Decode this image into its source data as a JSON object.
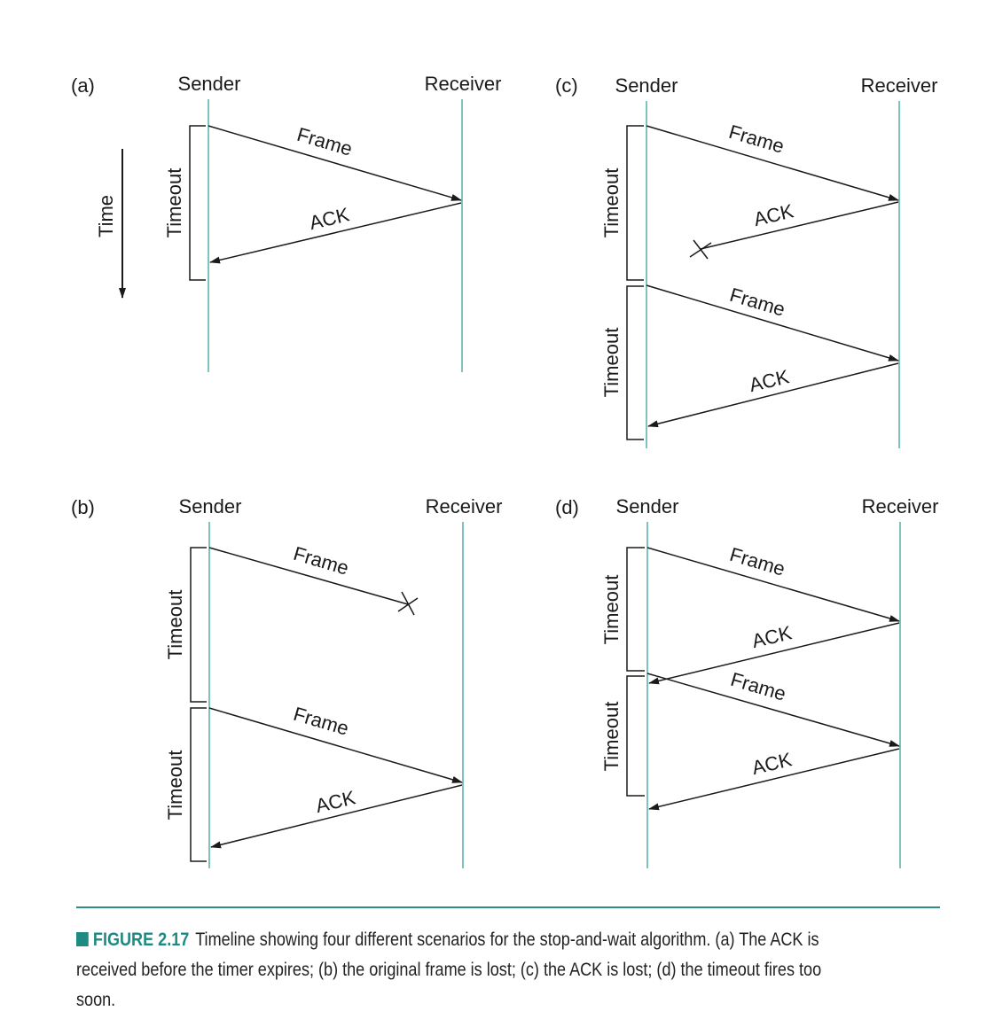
{
  "axis": {
    "time_label": "Time"
  },
  "panels": [
    {
      "id": "a",
      "tag": "(a)",
      "sender": "Sender",
      "receiver": "Receiver",
      "timeouts": [
        "Timeout"
      ],
      "messages": [
        {
          "label": "Frame"
        },
        {
          "label": "ACK"
        }
      ]
    },
    {
      "id": "b",
      "tag": "(b)",
      "sender": "Sender",
      "receiver": "Receiver",
      "timeouts": [
        "Timeout",
        "Timeout"
      ],
      "messages": [
        {
          "label": "Frame",
          "lost": true
        },
        {
          "label": "Frame"
        },
        {
          "label": "ACK"
        }
      ]
    },
    {
      "id": "c",
      "tag": "(c)",
      "sender": "Sender",
      "receiver": "Receiver",
      "timeouts": [
        "Timeout",
        "Timeout"
      ],
      "messages": [
        {
          "label": "Frame"
        },
        {
          "label": "ACK",
          "lost": true
        },
        {
          "label": "Frame"
        },
        {
          "label": "ACK"
        }
      ]
    },
    {
      "id": "d",
      "tag": "(d)",
      "sender": "Sender",
      "receiver": "Receiver",
      "timeouts": [
        "Timeout",
        "Timeout"
      ],
      "messages": [
        {
          "label": "Frame"
        },
        {
          "label": "ACK"
        },
        {
          "label": "Frame"
        },
        {
          "label": "ACK"
        }
      ]
    }
  ],
  "caption": {
    "figure_label": "FIGURE 2.17",
    "text": "Timeline showing four different scenarios for the stop-and-wait algorithm. (a) The ACK is received before the timer expires; (b) the original frame is lost; (c) the ACK is lost; (d) the timeout fires too soon."
  },
  "colors": {
    "lifeline": "#7cc4bf",
    "accent": "#1f8a82",
    "line": "#1a1a1a"
  }
}
